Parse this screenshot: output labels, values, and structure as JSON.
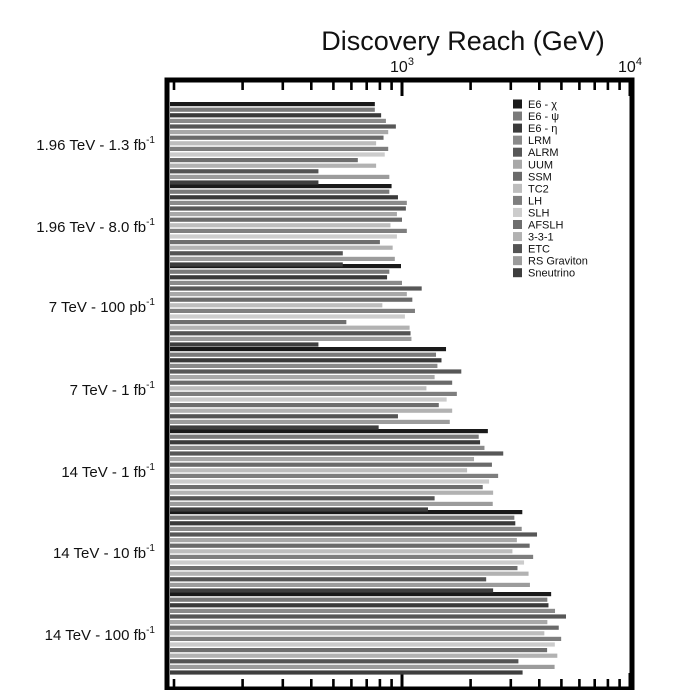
{
  "chart_data": {
    "type": "bar",
    "orientation": "horizontal",
    "title": "Discovery Reach (GeV)",
    "x_scale": "log",
    "xlim": [
      100,
      10000
    ],
    "x_tick_labels": [
      {
        "value": 1000,
        "base": "10",
        "exp": "3"
      },
      {
        "value": 10000,
        "base": "10",
        "exp": "4"
      }
    ],
    "grid": false,
    "legend_position": "top-right",
    "categories": [
      {
        "label": "1.96 TeV - 1.3 fb",
        "sup": "-1"
      },
      {
        "label": "1.96 TeV - 8.0 fb",
        "sup": "-1"
      },
      {
        "label": "7 TeV - 100 pb",
        "sup": "-1"
      },
      {
        "label": "7 TeV - 1 fb",
        "sup": "-1"
      },
      {
        "label": "14 TeV - 1 fb",
        "sup": "-1"
      },
      {
        "label": "14 TeV - 10 fb",
        "sup": "-1"
      },
      {
        "label": "14 TeV - 100 fb",
        "sup": "-1"
      }
    ],
    "series": [
      {
        "name": "E6 - χ",
        "color": "#1a1a1a",
        "values": [
          760,
          900,
          990,
          1560,
          2380,
          3370,
          4510
        ]
      },
      {
        "name": "E6 - ψ",
        "color": "#7a7a7a",
        "values": [
          760,
          880,
          880,
          1410,
          2170,
          3110,
          4340
        ]
      },
      {
        "name": "E6 - η",
        "color": "#3a3a3a",
        "values": [
          810,
          960,
          860,
          1490,
          2200,
          3140,
          4390
        ]
      },
      {
        "name": "LRM",
        "color": "#8a8a8a",
        "values": [
          850,
          1050,
          1000,
          1430,
          2300,
          3350,
          4690
        ]
      },
      {
        "name": "ALRM",
        "color": "#575757",
        "values": [
          940,
          1040,
          1220,
          1820,
          2780,
          3910,
          5240
        ]
      },
      {
        "name": "UUM",
        "color": "#a8a8a8",
        "values": [
          870,
          950,
          1050,
          1390,
          2070,
          3190,
          4340
        ]
      },
      {
        "name": "SSM",
        "color": "#6a6a6a",
        "values": [
          830,
          1000,
          1110,
          1660,
          2480,
          3630,
          4870
        ]
      },
      {
        "name": "TC2",
        "color": "#bdbdbd",
        "values": [
          770,
          890,
          820,
          1280,
          1930,
          3050,
          4210
        ]
      },
      {
        "name": "LH",
        "color": "#7e7e7e",
        "values": [
          870,
          1050,
          1140,
          1740,
          2640,
          3760,
          4990
        ]
      },
      {
        "name": "SLH",
        "color": "#cccccc",
        "values": [
          840,
          950,
          1030,
          1570,
          2410,
          3430,
          4680
        ]
      },
      {
        "name": "AFSLH",
        "color": "#6e6e6e",
        "values": [
          640,
          800,
          570,
          1450,
          2260,
          3210,
          4330
        ]
      },
      {
        "name": "3-3-1",
        "color": "#b2b2b2",
        "values": [
          770,
          910,
          1080,
          1660,
          2510,
          3590,
          4800
        ]
      },
      {
        "name": "ETC",
        "color": "#545454",
        "values": [
          430,
          550,
          1090,
          960,
          1390,
          2340,
          3240
        ]
      },
      {
        "name": "RS Graviton",
        "color": "#9c9c9c",
        "values": [
          880,
          930,
          1100,
          1620,
          2500,
          3640,
          4670
        ]
      },
      {
        "name": "Sneutrino",
        "color": "#3e3e3e",
        "values": [
          430,
          550,
          430,
          790,
          1300,
          2510,
          3380
        ]
      }
    ]
  }
}
